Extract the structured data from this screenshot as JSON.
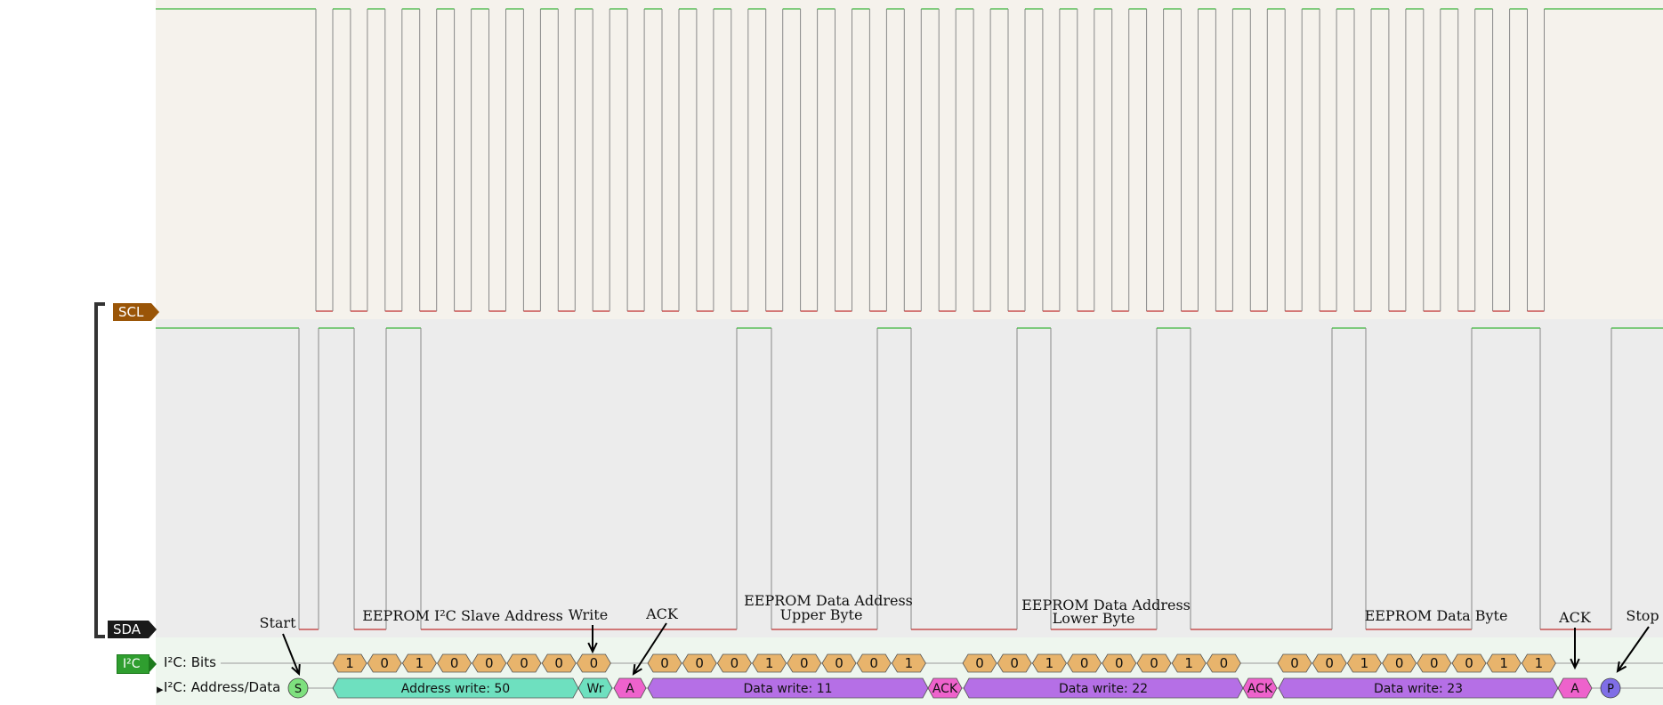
{
  "channels": {
    "scl": "SCL",
    "sda": "SDA",
    "decoder_tag": "I²C",
    "bits_row": "I²C: Bits",
    "data_row": "I²C: Address/Data"
  },
  "bits": [
    "1",
    "0",
    "1",
    "0",
    "0",
    "0",
    "0",
    "0",
    "0",
    "0",
    "0",
    "1",
    "0",
    "0",
    "0",
    "1",
    "0",
    "0",
    "1",
    "0",
    "0",
    "0",
    "1",
    "0",
    "0",
    "0",
    "1",
    "0",
    "0",
    "0",
    "1",
    "1"
  ],
  "packets": {
    "start": "S",
    "address": "Address write: 50",
    "wr": "Wr",
    "ack1": "A",
    "data1": "Data write: 11",
    "ack2": "ACK",
    "data2": "Data write: 22",
    "ack3": "ACK",
    "data3": "Data write: 23",
    "ack4": "A",
    "stop": "P"
  },
  "annotations": {
    "start": "Start",
    "slave_address": "EEPROM I²C Slave Address",
    "write": "Write",
    "ack": "ACK",
    "upper_line1": "EEPROM Data Address",
    "upper_line2": "Upper Byte",
    "lower_line1": "EEPROM Data Address",
    "lower_line2": "Lower Byte",
    "data_byte": "EEPROM Data Byte",
    "ack_end": "ACK",
    "stop": "Stop"
  },
  "colors": {
    "scl_bg": "#f5f2ec",
    "sda_bg": "#ececec",
    "decoder_bg": "#eef6ee",
    "high_line": "#3cb53c",
    "low_line": "#c03030",
    "edge": "#888888",
    "bit": "#e8b46c",
    "address": "#6ee0bf",
    "data": "#b56fe6",
    "ack": "#ee62cc",
    "start": "#7ee07e",
    "stop": "#7f6ee6"
  }
}
